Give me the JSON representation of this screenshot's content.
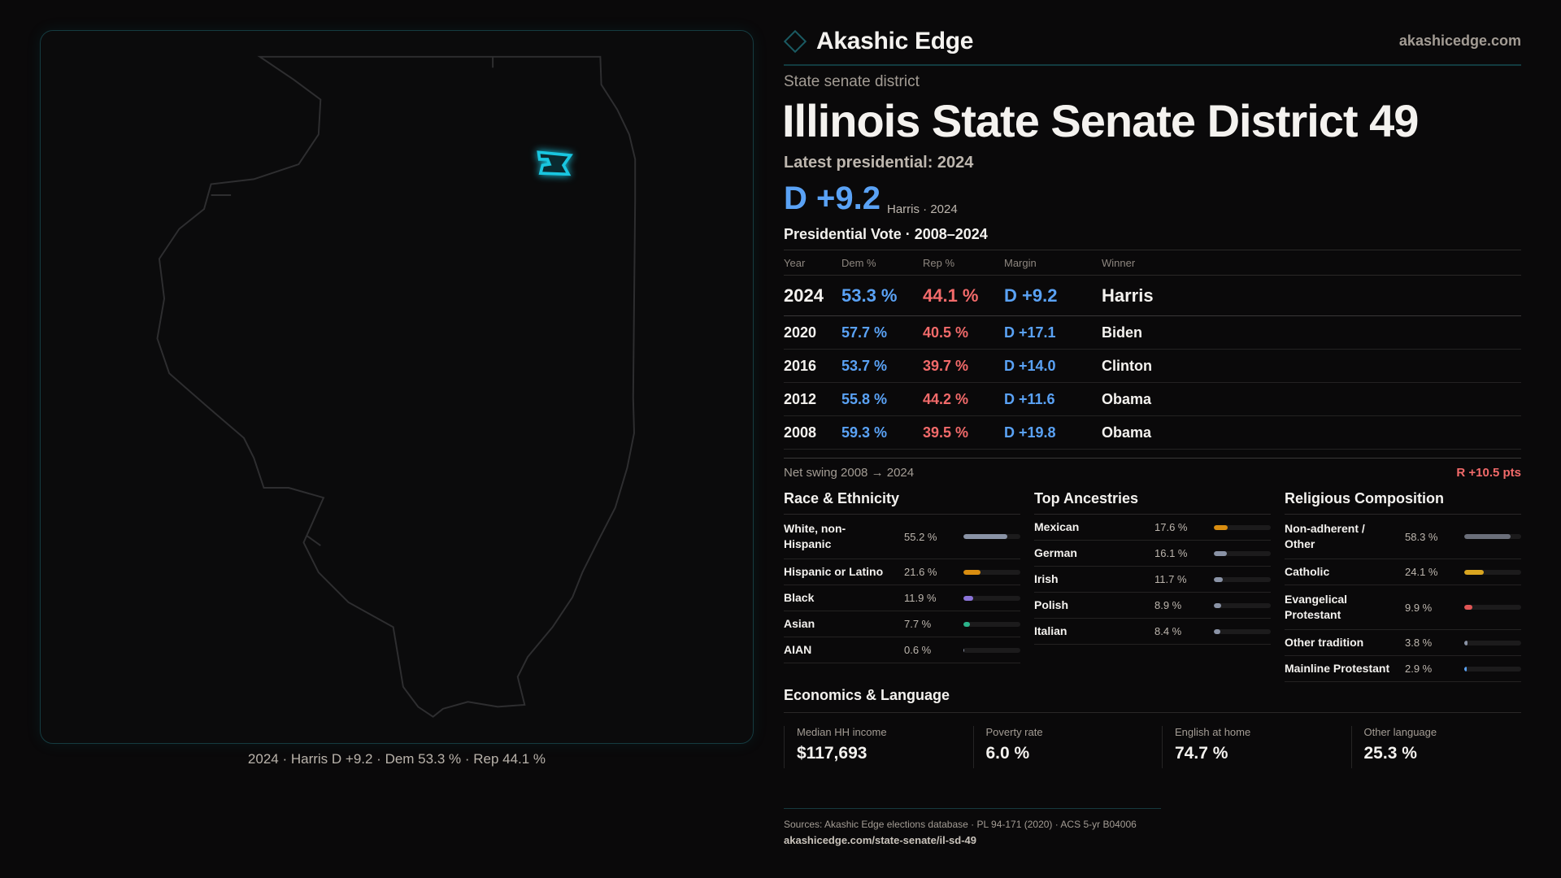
{
  "brand": {
    "name": "Akashic Edge",
    "site": "akashicedge.com",
    "logo_icon": "diamond-outline-icon"
  },
  "header": {
    "kind": "State senate district",
    "title": "Illinois State Senate District 49",
    "latest_label": "Latest presidential: 2024",
    "margin": "D +9.2",
    "margin_sub": "Harris · 2024"
  },
  "map": {
    "caption": "2024 · Harris D +9.2 · Dem 53.3 % · Rep 44.1 %",
    "highlight_color": "#19c6e0",
    "outline_color": "#2e2e30"
  },
  "presidential": {
    "title": "Presidential Vote · 2008–2024",
    "columns": [
      "Year",
      "Dem %",
      "Rep %",
      "Margin",
      "Winner"
    ],
    "rows": [
      {
        "year": "2024",
        "dem": "53.3 %",
        "rep": "44.1 %",
        "margin": "D +9.2",
        "winner": "Harris"
      },
      {
        "year": "2020",
        "dem": "57.7 %",
        "rep": "40.5 %",
        "margin": "D +17.1",
        "winner": "Biden"
      },
      {
        "year": "2016",
        "dem": "53.7 %",
        "rep": "39.7 %",
        "margin": "D +14.0",
        "winner": "Clinton"
      },
      {
        "year": "2012",
        "dem": "55.8 %",
        "rep": "44.2 %",
        "margin": "D +11.6",
        "winner": "Obama"
      },
      {
        "year": "2008",
        "dem": "59.3 %",
        "rep": "39.5 %",
        "margin": "D +19.8",
        "winner": "Obama"
      }
    ],
    "swing_label": "Net swing 2008 → 2024",
    "swing_value": "R +10.5 pts"
  },
  "colors": {
    "dem": "#5aa2f5",
    "rep": "#f26a6a"
  },
  "race": {
    "title": "Race & Ethnicity",
    "items": [
      {
        "label": "White, non-Hispanic",
        "pct": "55.2 %",
        "value": 55.2,
        "color": "#8a93a6"
      },
      {
        "label": "Hispanic or Latino",
        "pct": "21.6 %",
        "value": 21.6,
        "color": "#d98d10"
      },
      {
        "label": "Black",
        "pct": "11.9 %",
        "value": 11.9,
        "color": "#8b74d9"
      },
      {
        "label": "Asian",
        "pct": "7.7 %",
        "value": 7.7,
        "color": "#2bb38a"
      },
      {
        "label": "AIAN",
        "pct": "0.6 %",
        "value": 0.6,
        "color": "#8a93a6"
      }
    ]
  },
  "ancestry": {
    "title": "Top Ancestries",
    "items": [
      {
        "label": "Mexican",
        "pct": "17.6 %",
        "value": 17.6,
        "color": "#d98d10"
      },
      {
        "label": "German",
        "pct": "16.1 %",
        "value": 16.1,
        "color": "#8a93a6"
      },
      {
        "label": "Irish",
        "pct": "11.7 %",
        "value": 11.7,
        "color": "#8a93a6"
      },
      {
        "label": "Polish",
        "pct": "8.9 %",
        "value": 8.9,
        "color": "#8a93a6"
      },
      {
        "label": "Italian",
        "pct": "8.4 %",
        "value": 8.4,
        "color": "#8a93a6"
      }
    ]
  },
  "religion": {
    "title": "Religious Composition",
    "items": [
      {
        "label": "Non-adherent / Other",
        "pct": "58.3 %",
        "value": 58.3,
        "color": "#6b6f7a"
      },
      {
        "label": "Catholic",
        "pct": "24.1 %",
        "value": 24.1,
        "color": "#d9a520"
      },
      {
        "label": "Evangelical Protestant",
        "pct": "9.9 %",
        "value": 9.9,
        "color": "#e05555"
      },
      {
        "label": "Other tradition",
        "pct": "3.8 %",
        "value": 3.8,
        "color": "#8a93a6"
      },
      {
        "label": "Mainline Protestant",
        "pct": "2.9 %",
        "value": 2.9,
        "color": "#5aa2f5"
      }
    ]
  },
  "economics": {
    "title": "Economics & Language",
    "cards": [
      {
        "label": "Median HH income",
        "value": "$117,693"
      },
      {
        "label": "Poverty rate",
        "value": "6.0 %"
      },
      {
        "label": "English at home",
        "value": "74.7 %"
      },
      {
        "label": "Other language",
        "value": "25.3 %"
      }
    ]
  },
  "footer": {
    "sources": "Sources: Akashic Edge elections database · PL 94-171 (2020) · ACS 5-yr B04006",
    "url": "akashicedge.com/state-senate/il-sd-49"
  }
}
